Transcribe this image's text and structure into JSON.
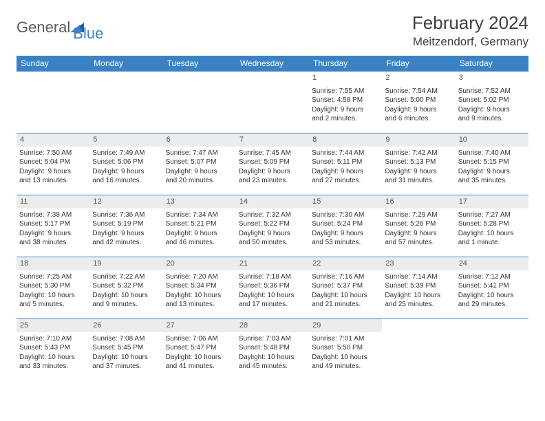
{
  "logo": {
    "word1": "General",
    "word2": "Blue"
  },
  "title": "February 2024",
  "location": "Meitzendorf, Germany",
  "header_bg": "#3b82c4",
  "weekday_labels": [
    "Sunday",
    "Monday",
    "Tuesday",
    "Wednesday",
    "Thursday",
    "Friday",
    "Saturday"
  ],
  "weeks": [
    {
      "shade": false,
      "days": [
        {
          "empty": true
        },
        {
          "empty": true
        },
        {
          "empty": true
        },
        {
          "empty": true
        },
        {
          "num": "1",
          "sunrise": "Sunrise: 7:55 AM",
          "sunset": "Sunset: 4:58 PM",
          "day1": "Daylight: 9 hours",
          "day2": "and 2 minutes."
        },
        {
          "num": "2",
          "sunrise": "Sunrise: 7:54 AM",
          "sunset": "Sunset: 5:00 PM",
          "day1": "Daylight: 9 hours",
          "day2": "and 6 minutes."
        },
        {
          "num": "3",
          "sunrise": "Sunrise: 7:52 AM",
          "sunset": "Sunset: 5:02 PM",
          "day1": "Daylight: 9 hours",
          "day2": "and 9 minutes."
        }
      ]
    },
    {
      "shade": true,
      "days": [
        {
          "num": "4",
          "sunrise": "Sunrise: 7:50 AM",
          "sunset": "Sunset: 5:04 PM",
          "day1": "Daylight: 9 hours",
          "day2": "and 13 minutes."
        },
        {
          "num": "5",
          "sunrise": "Sunrise: 7:49 AM",
          "sunset": "Sunset: 5:06 PM",
          "day1": "Daylight: 9 hours",
          "day2": "and 16 minutes."
        },
        {
          "num": "6",
          "sunrise": "Sunrise: 7:47 AM",
          "sunset": "Sunset: 5:07 PM",
          "day1": "Daylight: 9 hours",
          "day2": "and 20 minutes."
        },
        {
          "num": "7",
          "sunrise": "Sunrise: 7:45 AM",
          "sunset": "Sunset: 5:09 PM",
          "day1": "Daylight: 9 hours",
          "day2": "and 23 minutes."
        },
        {
          "num": "8",
          "sunrise": "Sunrise: 7:44 AM",
          "sunset": "Sunset: 5:11 PM",
          "day1": "Daylight: 9 hours",
          "day2": "and 27 minutes."
        },
        {
          "num": "9",
          "sunrise": "Sunrise: 7:42 AM",
          "sunset": "Sunset: 5:13 PM",
          "day1": "Daylight: 9 hours",
          "day2": "and 31 minutes."
        },
        {
          "num": "10",
          "sunrise": "Sunrise: 7:40 AM",
          "sunset": "Sunset: 5:15 PM",
          "day1": "Daylight: 9 hours",
          "day2": "and 35 minutes."
        }
      ]
    },
    {
      "shade": true,
      "days": [
        {
          "num": "11",
          "sunrise": "Sunrise: 7:38 AM",
          "sunset": "Sunset: 5:17 PM",
          "day1": "Daylight: 9 hours",
          "day2": "and 38 minutes."
        },
        {
          "num": "12",
          "sunrise": "Sunrise: 7:36 AM",
          "sunset": "Sunset: 5:19 PM",
          "day1": "Daylight: 9 hours",
          "day2": "and 42 minutes."
        },
        {
          "num": "13",
          "sunrise": "Sunrise: 7:34 AM",
          "sunset": "Sunset: 5:21 PM",
          "day1": "Daylight: 9 hours",
          "day2": "and 46 minutes."
        },
        {
          "num": "14",
          "sunrise": "Sunrise: 7:32 AM",
          "sunset": "Sunset: 5:22 PM",
          "day1": "Daylight: 9 hours",
          "day2": "and 50 minutes."
        },
        {
          "num": "15",
          "sunrise": "Sunrise: 7:30 AM",
          "sunset": "Sunset: 5:24 PM",
          "day1": "Daylight: 9 hours",
          "day2": "and 53 minutes."
        },
        {
          "num": "16",
          "sunrise": "Sunrise: 7:29 AM",
          "sunset": "Sunset: 5:26 PM",
          "day1": "Daylight: 9 hours",
          "day2": "and 57 minutes."
        },
        {
          "num": "17",
          "sunrise": "Sunrise: 7:27 AM",
          "sunset": "Sunset: 5:28 PM",
          "day1": "Daylight: 10 hours",
          "day2": "and 1 minute."
        }
      ]
    },
    {
      "shade": true,
      "days": [
        {
          "num": "18",
          "sunrise": "Sunrise: 7:25 AM",
          "sunset": "Sunset: 5:30 PM",
          "day1": "Daylight: 10 hours",
          "day2": "and 5 minutes."
        },
        {
          "num": "19",
          "sunrise": "Sunrise: 7:22 AM",
          "sunset": "Sunset: 5:32 PM",
          "day1": "Daylight: 10 hours",
          "day2": "and 9 minutes."
        },
        {
          "num": "20",
          "sunrise": "Sunrise: 7:20 AM",
          "sunset": "Sunset: 5:34 PM",
          "day1": "Daylight: 10 hours",
          "day2": "and 13 minutes."
        },
        {
          "num": "21",
          "sunrise": "Sunrise: 7:18 AM",
          "sunset": "Sunset: 5:36 PM",
          "day1": "Daylight: 10 hours",
          "day2": "and 17 minutes."
        },
        {
          "num": "22",
          "sunrise": "Sunrise: 7:16 AM",
          "sunset": "Sunset: 5:37 PM",
          "day1": "Daylight: 10 hours",
          "day2": "and 21 minutes."
        },
        {
          "num": "23",
          "sunrise": "Sunrise: 7:14 AM",
          "sunset": "Sunset: 5:39 PM",
          "day1": "Daylight: 10 hours",
          "day2": "and 25 minutes."
        },
        {
          "num": "24",
          "sunrise": "Sunrise: 7:12 AM",
          "sunset": "Sunset: 5:41 PM",
          "day1": "Daylight: 10 hours",
          "day2": "and 29 minutes."
        }
      ]
    },
    {
      "shade": true,
      "days": [
        {
          "num": "25",
          "sunrise": "Sunrise: 7:10 AM",
          "sunset": "Sunset: 5:43 PM",
          "day1": "Daylight: 10 hours",
          "day2": "and 33 minutes."
        },
        {
          "num": "26",
          "sunrise": "Sunrise: 7:08 AM",
          "sunset": "Sunset: 5:45 PM",
          "day1": "Daylight: 10 hours",
          "day2": "and 37 minutes."
        },
        {
          "num": "27",
          "sunrise": "Sunrise: 7:06 AM",
          "sunset": "Sunset: 5:47 PM",
          "day1": "Daylight: 10 hours",
          "day2": "and 41 minutes."
        },
        {
          "num": "28",
          "sunrise": "Sunrise: 7:03 AM",
          "sunset": "Sunset: 5:48 PM",
          "day1": "Daylight: 10 hours",
          "day2": "and 45 minutes."
        },
        {
          "num": "29",
          "sunrise": "Sunrise: 7:01 AM",
          "sunset": "Sunset: 5:50 PM",
          "day1": "Daylight: 10 hours",
          "day2": "and 49 minutes."
        },
        {
          "empty": true
        },
        {
          "empty": true
        }
      ]
    }
  ]
}
